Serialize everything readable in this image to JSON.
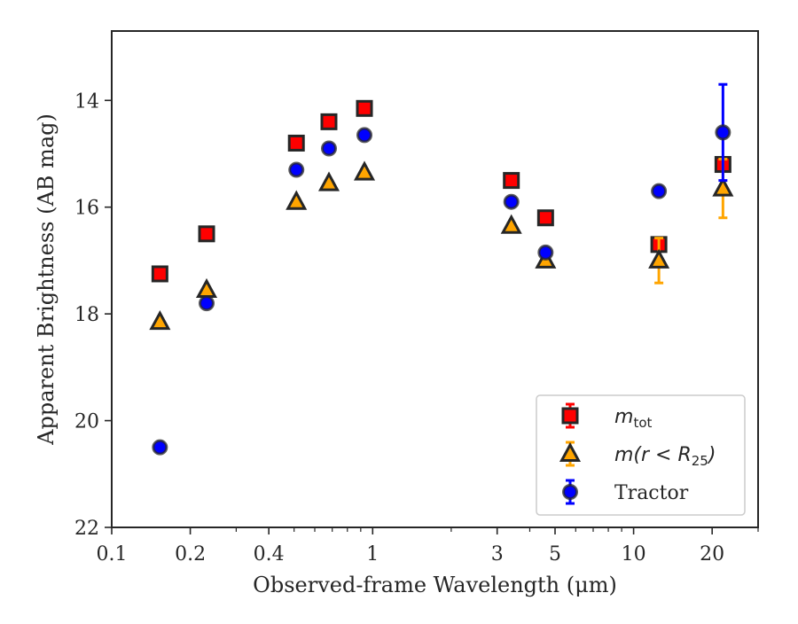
{
  "chart_data": {
    "type": "scatter",
    "xlabel": "Observed-frame Wavelength (μm)",
    "ylabel": "Apparent Brightness (AB mag)",
    "x_scale": "log",
    "xlim": [
      0.1,
      30
    ],
    "ylim": [
      22,
      12.7
    ],
    "y_inverted": true,
    "grid": false,
    "legend_position": "lower-right",
    "x_ticks": [
      0.1,
      0.2,
      0.4,
      1,
      3,
      5,
      10,
      20
    ],
    "x_tick_labels": [
      "0.1",
      "0.2",
      "0.4",
      "1",
      "3",
      "5",
      "10",
      "20"
    ],
    "y_ticks": [
      14,
      16,
      18,
      20,
      22
    ],
    "y_tick_labels": [
      "14",
      "16",
      "18",
      "20",
      "22"
    ],
    "series": [
      {
        "name": "m_tot",
        "legend_label": "m",
        "legend_sub": "tot",
        "marker": "square",
        "fill": "#ff0000",
        "edge": "#262626",
        "errcolor": "#ff0000",
        "points": [
          {
            "x": 0.153,
            "y": 17.25,
            "err": 0.05
          },
          {
            "x": 0.231,
            "y": 16.5,
            "err": 0.05
          },
          {
            "x": 0.51,
            "y": 14.8,
            "err": 0.05
          },
          {
            "x": 0.68,
            "y": 14.4,
            "err": 0.05
          },
          {
            "x": 0.93,
            "y": 14.15,
            "err": 0.05
          },
          {
            "x": 3.4,
            "y": 15.5,
            "err": 0.05
          },
          {
            "x": 4.6,
            "y": 16.2,
            "err": 0.05
          },
          {
            "x": 12.5,
            "y": 16.7,
            "err": 0.05
          },
          {
            "x": 22,
            "y": 15.2,
            "err": 0.1
          }
        ]
      },
      {
        "name": "m(r<R_25)",
        "legend_label": "m(r < R",
        "legend_sub": "25",
        "legend_tail": ")",
        "marker": "triangle",
        "fill": "#ffa500",
        "edge": "#262626",
        "errcolor": "#ffa500",
        "points": [
          {
            "x": 0.153,
            "y": 18.15,
            "err": 0.05
          },
          {
            "x": 0.231,
            "y": 17.55,
            "err": 0.05
          },
          {
            "x": 0.51,
            "y": 15.9,
            "err": 0.05
          },
          {
            "x": 0.68,
            "y": 15.55,
            "err": 0.05
          },
          {
            "x": 0.93,
            "y": 15.35,
            "err": 0.05
          },
          {
            "x": 3.4,
            "y": 16.35,
            "err": 0.05
          },
          {
            "x": 4.6,
            "y": 17.0,
            "err": 0.05
          },
          {
            "x": 12.5,
            "y": 17.0,
            "err": 0.42
          },
          {
            "x": 22,
            "y": 15.65,
            "err": 0.55
          }
        ]
      },
      {
        "name": "Tractor",
        "legend_label": "Tractor",
        "marker": "circle",
        "fill": "#0000ff",
        "edge": "#262626",
        "errcolor": "#0000ff",
        "points": [
          {
            "x": 0.153,
            "y": 20.5,
            "err": 0.05
          },
          {
            "x": 0.231,
            "y": 17.8,
            "err": 0.05
          },
          {
            "x": 0.51,
            "y": 15.3,
            "err": 0.05
          },
          {
            "x": 0.68,
            "y": 14.9,
            "err": 0.05
          },
          {
            "x": 0.93,
            "y": 14.65,
            "err": 0.05
          },
          {
            "x": 3.4,
            "y": 15.9,
            "err": 0.05
          },
          {
            "x": 4.6,
            "y": 16.85,
            "err": 0.05
          },
          {
            "x": 12.5,
            "y": 15.7,
            "err": 0.05
          },
          {
            "x": 22,
            "y": 14.6,
            "err": 0.9
          }
        ]
      }
    ]
  }
}
